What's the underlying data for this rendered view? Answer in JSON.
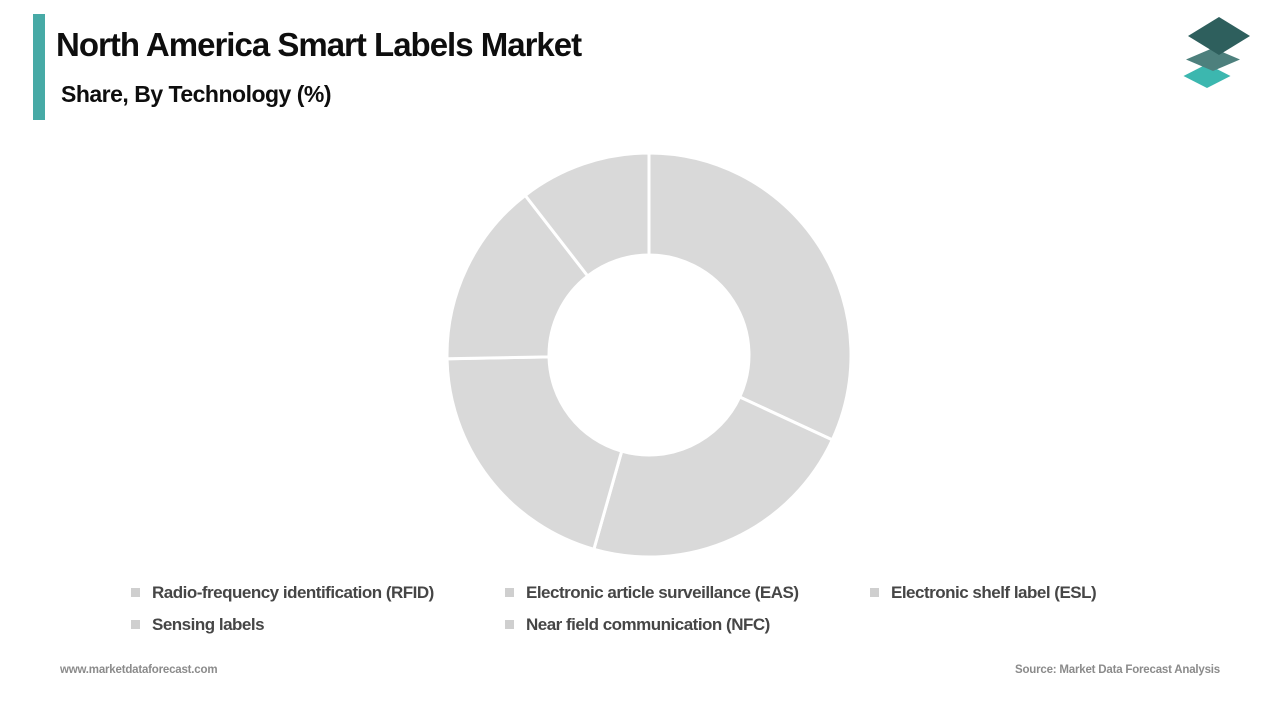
{
  "header": {
    "title": "North America Smart Labels Market",
    "subtitle": "Share, By Technology (%)"
  },
  "branding": {
    "accent_color": "#47aaa6",
    "logo_icon": "layered-diamonds-logo",
    "logo_layer_colors": [
      "#3cb7af",
      "#4d807d",
      "#2e5f5d"
    ]
  },
  "footer": {
    "website": "www.marketdataforecast.com",
    "source": "Source: Market Data Forecast Analysis"
  },
  "chart_data": {
    "type": "pie",
    "subtype": "donut",
    "title": "North America Smart Labels Market Share, By Technology (%)",
    "categories": [
      "Radio-frequency identification (RFID)",
      "Electronic article surveillance (EAS)",
      "Electronic shelf label (ESL)",
      "Sensing labels",
      "Near field communication (NFC)"
    ],
    "values": [
      31.9,
      22.5,
      20.3,
      14.8,
      10.5
    ],
    "start_angle_deg": 0,
    "direction": "clockwise",
    "inner_radius_ratio": 0.495,
    "slice_color": "#d9d9d9",
    "slice_border_color": "#ffffff",
    "data_labels_shown": false,
    "legend_position": "bottom",
    "legend_marker_color": "#cfcfcf",
    "legend_columns": 3
  }
}
